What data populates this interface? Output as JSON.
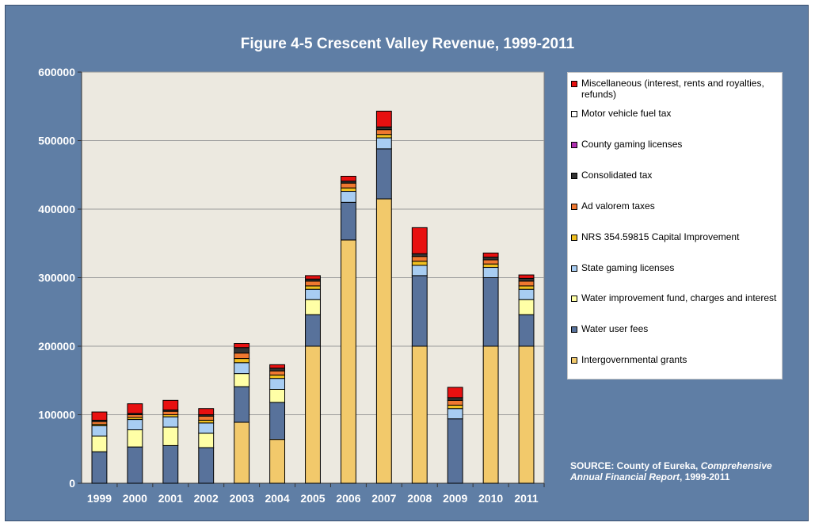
{
  "chart_data": {
    "type": "bar",
    "stacked": true,
    "title": "Figure 4-5 Crescent Valley  Revenue, 1999-2011",
    "categories": [
      "1999",
      "2000",
      "2001",
      "2002",
      "2003",
      "2004",
      "2005",
      "2006",
      "2007",
      "2008",
      "2009",
      "2010",
      "2011"
    ],
    "ylim": [
      0,
      600000
    ],
    "yticks": [
      0,
      100000,
      200000,
      300000,
      400000,
      500000,
      600000
    ],
    "ytick_labels": [
      "0",
      "100000",
      "200000",
      "300000",
      "400000",
      "500000",
      "600000"
    ],
    "grid": true,
    "legend_position": "right",
    "series": [
      {
        "name": "Intergovernmental grants",
        "color": "#f2c96b",
        "values": [
          0,
          0,
          0,
          0,
          89000,
          64000,
          200000,
          355000,
          415000,
          200000,
          0,
          200000,
          200000
        ]
      },
      {
        "name": "Water user fees",
        "color": "#58729b",
        "values": [
          46000,
          53000,
          55000,
          52000,
          52000,
          54000,
          46000,
          55000,
          73000,
          103000,
          94000,
          100000,
          46000
        ]
      },
      {
        "name": "Water improvement fund, charges and interest",
        "color": "#ffffa6",
        "values": [
          23000,
          25000,
          27000,
          21000,
          19000,
          19000,
          22000,
          0,
          0,
          0,
          0,
          0,
          22000
        ]
      },
      {
        "name": "State gaming licenses",
        "color": "#a8cdf2",
        "values": [
          15000,
          15000,
          15000,
          15000,
          16000,
          16000,
          15000,
          16000,
          16000,
          15000,
          15000,
          15000,
          15000
        ]
      },
      {
        "name": "NRS 354.59815 Capital Improvement",
        "color": "#f0c020",
        "values": [
          2000,
          3000,
          3000,
          4000,
          6000,
          5000,
          5000,
          5000,
          5000,
          6000,
          5000,
          5000,
          5000
        ]
      },
      {
        "name": "Ad valorem taxes",
        "color": "#f07830",
        "values": [
          4000,
          4000,
          5000,
          6000,
          8000,
          6000,
          7000,
          7000,
          7000,
          7000,
          7000,
          6000,
          7000
        ]
      },
      {
        "name": "Consolidated tax",
        "color": "#333333",
        "values": [
          2000,
          2000,
          2000,
          2000,
          8000,
          4000,
          3000,
          3000,
          4000,
          4000,
          4000,
          4000,
          4000
        ]
      },
      {
        "name": "County gaming licenses",
        "color": "#b030b0",
        "values": [
          0,
          0,
          0,
          0,
          0,
          0,
          0,
          0,
          0,
          0,
          0,
          0,
          0
        ]
      },
      {
        "name": "Motor vehicle fuel tax",
        "color": "#ffffff",
        "values": [
          0,
          0,
          0,
          0,
          0,
          0,
          0,
          0,
          0,
          0,
          0,
          0,
          0
        ]
      },
      {
        "name": "Miscellaneous (interest, rents and royalties, refunds)",
        "color": "#e81010",
        "values": [
          12000,
          14000,
          14000,
          9000,
          6000,
          5000,
          5000,
          7000,
          23000,
          38000,
          15000,
          6000,
          5000
        ]
      }
    ],
    "source_label": "SOURCE: County of Eureka, ",
    "source_title": "Comprehensive Annual Financial Report",
    "source_years": ", 1999-2011"
  }
}
